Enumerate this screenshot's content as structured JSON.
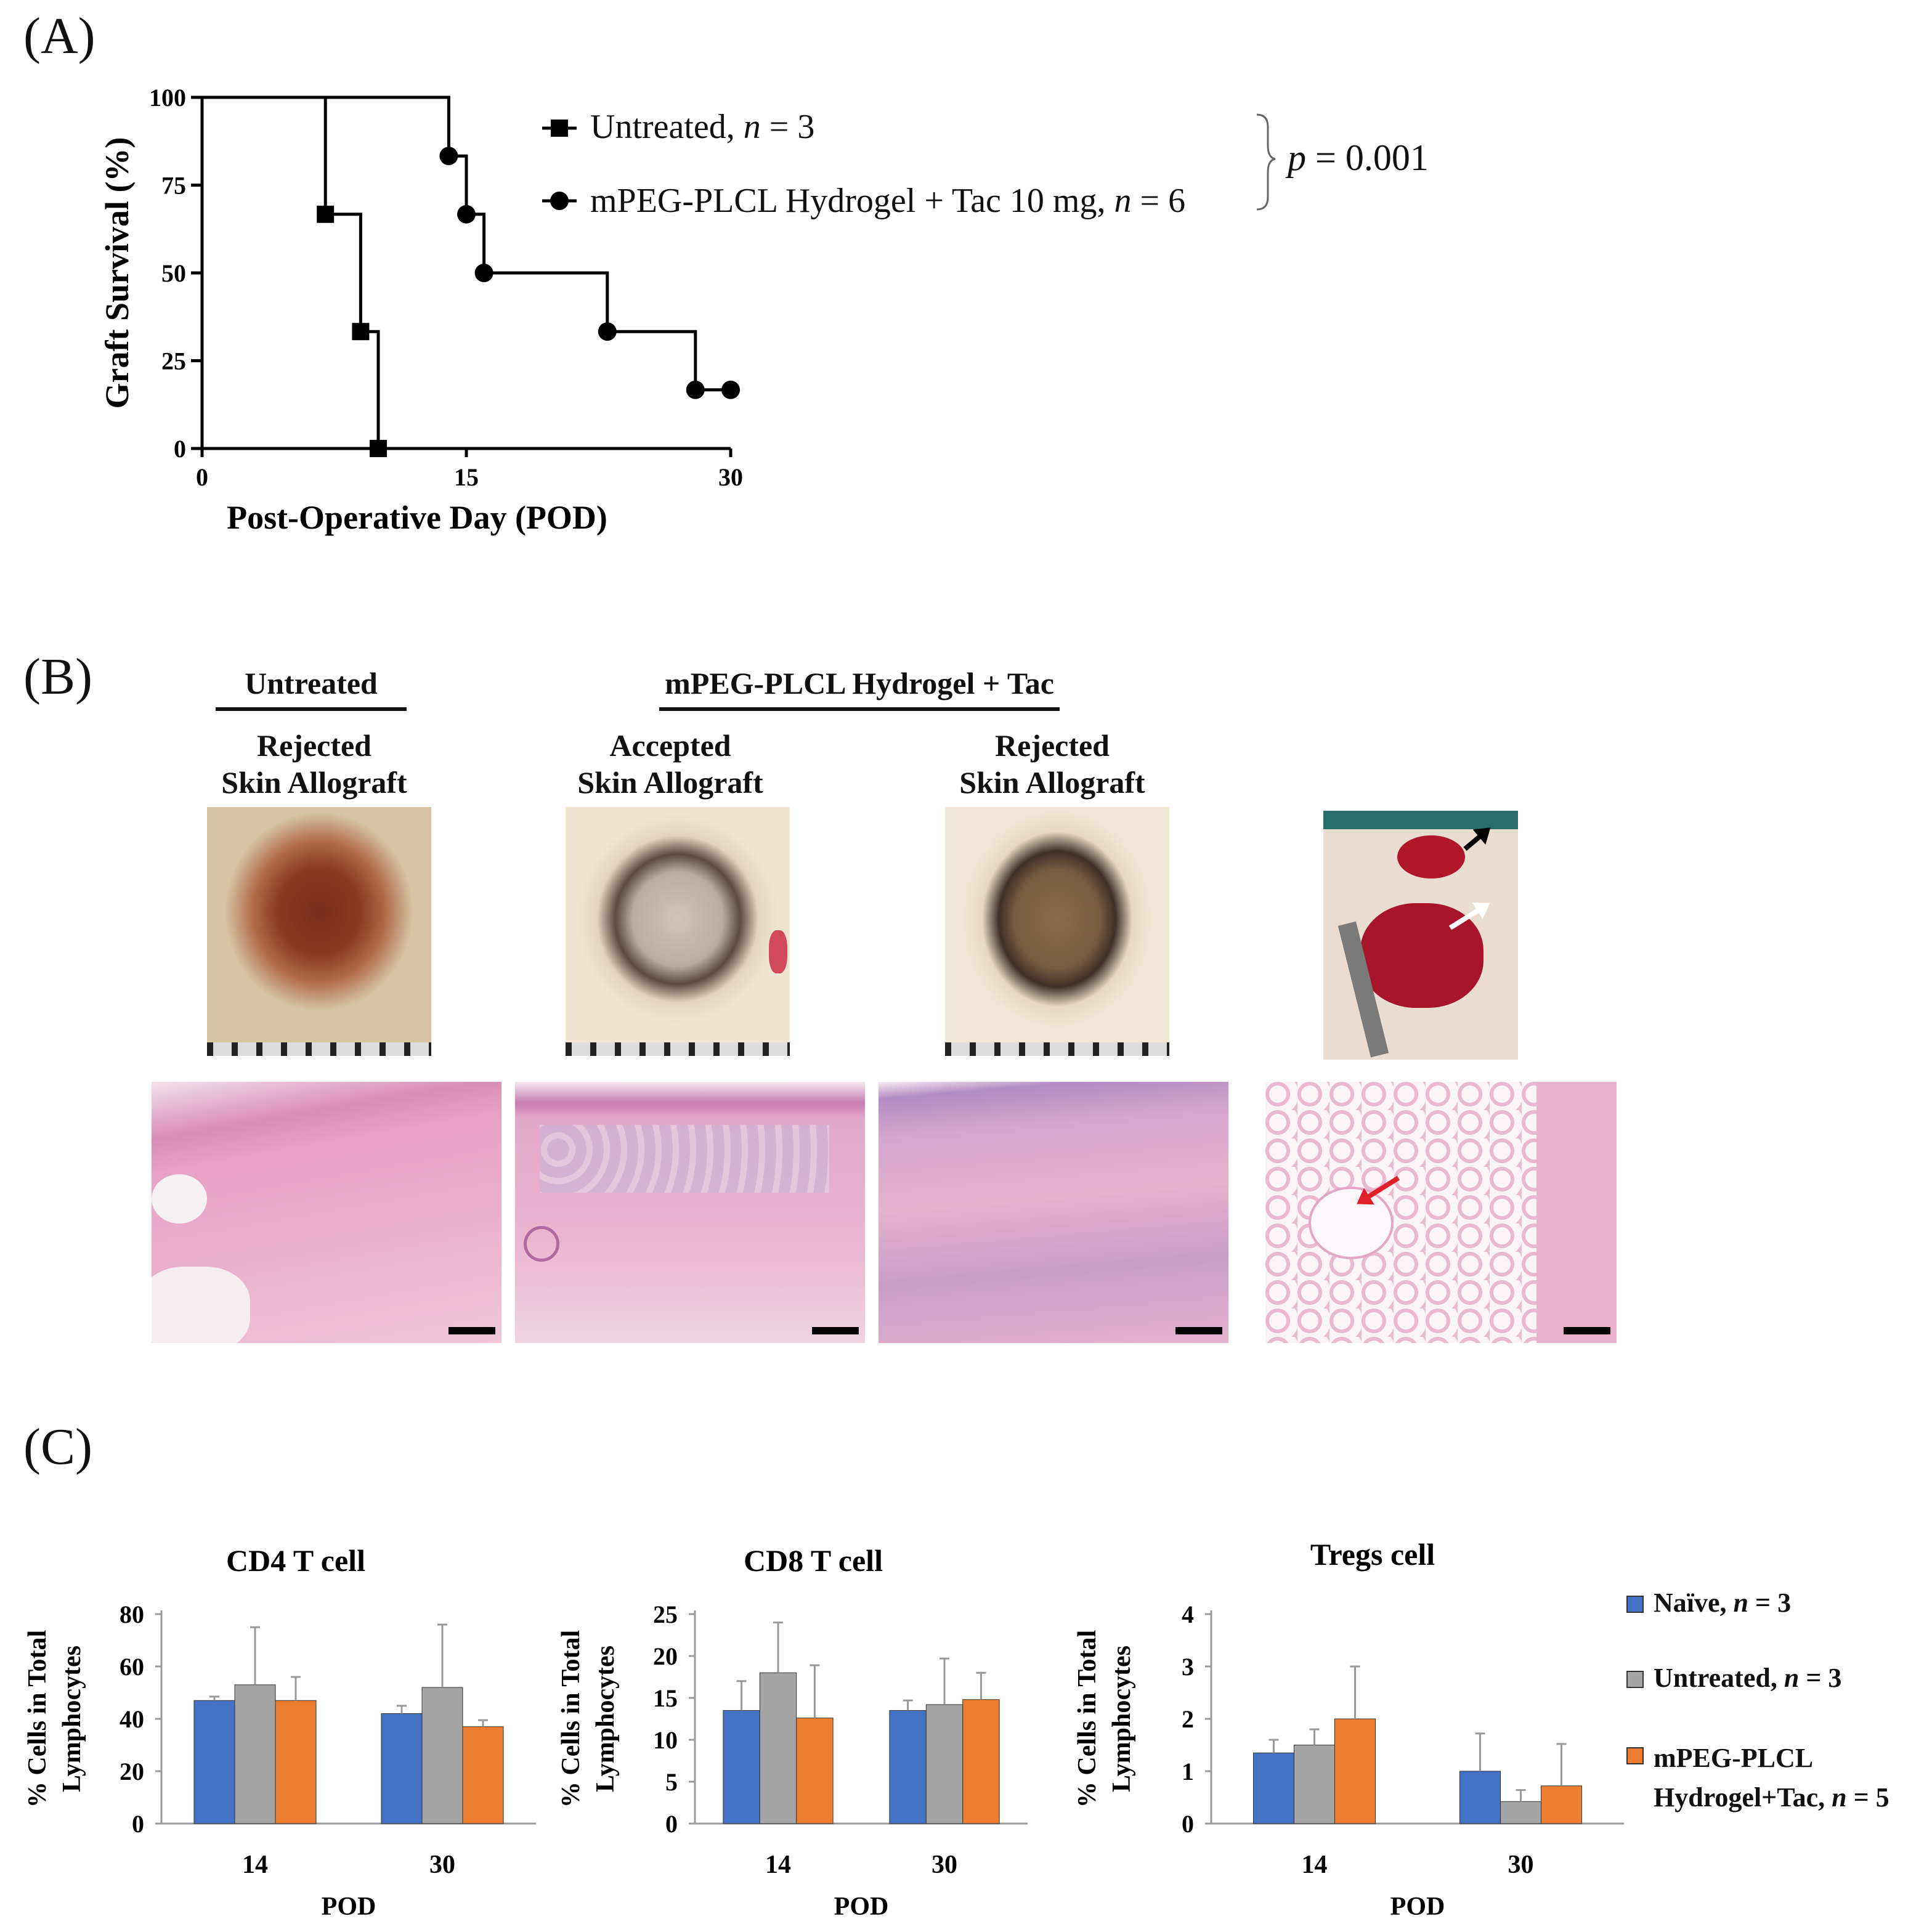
{
  "panels": {
    "a": "(A)",
    "b": "(B)",
    "c": "(C)"
  },
  "chart_data": [
    {
      "type": "line",
      "subtype": "kaplan-meier step",
      "ylabel": "Graft Survival (%)",
      "xlabel": "Post-Operative Day (POD)",
      "xlim": [
        0,
        30
      ],
      "ylim": [
        0,
        100
      ],
      "xticks": [
        "0",
        "15",
        "30"
      ],
      "yticks": [
        "0",
        "25",
        "50",
        "75",
        "100"
      ],
      "series": [
        {
          "name": "Untreated, n = 3",
          "marker": "square",
          "x": [
            0,
            7,
            7,
            9,
            9,
            10,
            10
          ],
          "y": [
            100,
            100,
            66.7,
            66.7,
            33.3,
            33.3,
            0
          ],
          "marker_points": [
            [
              7,
              66.7
            ],
            [
              9,
              33.3
            ],
            [
              10,
              0
            ]
          ]
        },
        {
          "name": "mPEG-PLCL Hydrogel + Tac 10 mg, n = 6",
          "marker": "circle",
          "x": [
            0,
            14,
            14,
            15,
            15,
            16,
            16,
            23,
            23,
            28,
            28,
            30
          ],
          "y": [
            100,
            100,
            83.3,
            83.3,
            66.7,
            66.7,
            50,
            50,
            33.3,
            33.3,
            16.7,
            16.7
          ],
          "marker_points": [
            [
              14,
              83.3
            ],
            [
              15,
              66.7
            ],
            [
              16,
              50
            ],
            [
              23,
              33.3
            ],
            [
              28,
              16.7
            ],
            [
              30,
              16.7
            ]
          ]
        }
      ],
      "legend": {
        "untreated_text": "Untreated, ",
        "untreated_n": "n",
        "untreated_rest": " = 3",
        "tac_text": "mPEG-PLCL Hydrogel + Tac 10 mg, ",
        "tac_n": "n",
        "tac_rest": " = 6"
      },
      "annotation": {
        "p": "p",
        "rest": " = 0.001"
      }
    },
    {
      "type": "bar",
      "title": "CD4 T cell",
      "xlabel": "POD",
      "ylabel": [
        "% Cells in Total",
        "Lymphocytes"
      ],
      "categories": [
        "14",
        "30"
      ],
      "ylim": [
        0,
        80
      ],
      "yticks": [
        "0",
        "20",
        "40",
        "60",
        "80"
      ],
      "series": [
        {
          "name": "Naïve, n = 3",
          "values": [
            47,
            42
          ],
          "errors": [
            1.5,
            3
          ]
        },
        {
          "name": "Untreated, n = 3",
          "values": [
            53,
            52
          ],
          "errors": [
            22,
            24
          ]
        },
        {
          "name": "mPEG-PLCL Hydrogel+Tac, n = 5",
          "values": [
            47,
            37
          ],
          "errors": [
            9,
            2.5
          ]
        }
      ]
    },
    {
      "type": "bar",
      "title": "CD8 T cell",
      "xlabel": "POD",
      "ylabel": [
        "% Cells in Total",
        "Lymphocytes"
      ],
      "categories": [
        "14",
        "30"
      ],
      "ylim": [
        0,
        25
      ],
      "yticks": [
        "0",
        "5",
        "10",
        "15",
        "20",
        "25"
      ],
      "series": [
        {
          "name": "Naïve, n = 3",
          "values": [
            13.5,
            13.5
          ],
          "errors": [
            3.5,
            1.2
          ]
        },
        {
          "name": "Untreated, n = 3",
          "values": [
            18,
            14.2
          ],
          "errors": [
            6,
            5.5
          ]
        },
        {
          "name": "mPEG-PLCL Hydrogel+Tac, n = 5",
          "values": [
            12.6,
            14.8
          ],
          "errors": [
            6.3,
            3.2
          ]
        }
      ]
    },
    {
      "type": "bar",
      "title": "Tregs cell",
      "xlabel": "POD",
      "ylabel": [
        "% Cells in Total",
        "Lymphocytes"
      ],
      "categories": [
        "14",
        "30"
      ],
      "ylim": [
        0,
        4
      ],
      "yticks": [
        "0",
        "1",
        "2",
        "3",
        "4"
      ],
      "series": [
        {
          "name": "Naïve, n = 3",
          "values": [
            1.35,
            1.0
          ],
          "errors": [
            0.25,
            0.72
          ]
        },
        {
          "name": "Untreated, n = 3",
          "values": [
            1.5,
            0.42
          ],
          "errors": [
            0.3,
            0.22
          ]
        },
        {
          "name": "mPEG-PLCL Hydrogel+Tac, n = 5",
          "values": [
            2.0,
            0.72
          ],
          "errors": [
            1.0,
            0.8
          ]
        }
      ]
    }
  ],
  "bar_colors": [
    "#4472c4",
    "#a5a5a5",
    "#ed7d31"
  ],
  "bar_legend": [
    {
      "label": "Naïve, ",
      "n": "n",
      "rest": " = 3"
    },
    {
      "label": "Untreated, ",
      "n": "n",
      "rest": " = 3"
    },
    {
      "label": "mPEG-PLCL",
      "line2": "Hydrogel+Tac, ",
      "n": "n",
      "rest": " = 5"
    }
  ],
  "panel_b": {
    "group_untreated": "Untreated",
    "group_tac": "mPEG-PLCL Hydrogel + Tac",
    "col1": [
      "Rejected",
      "Skin Allograft"
    ],
    "col2": [
      "Accepted",
      "Skin Allograft"
    ],
    "col3": [
      "Rejected",
      "Skin Allograft"
    ]
  }
}
